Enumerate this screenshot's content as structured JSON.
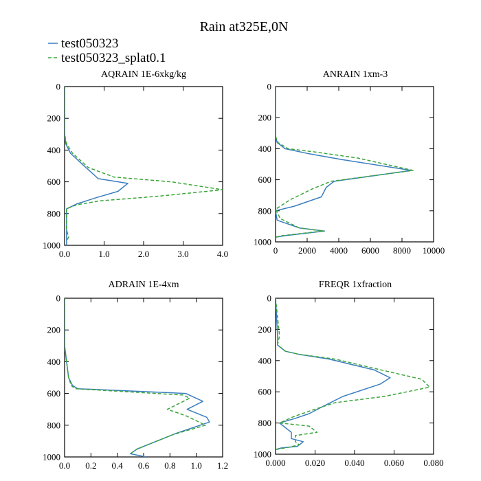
{
  "title": "Rain at325E,0N",
  "legend": [
    {
      "label": "test050323",
      "color": "#3a7ebf",
      "dash": "solid"
    },
    {
      "label": "test050323_splat0.1",
      "color": "#3aa538",
      "dash": "dashed"
    }
  ],
  "chart_data": [
    {
      "type": "line",
      "title": "AQRAIN  1E-6xkg/kg",
      "xlim": [
        0,
        4
      ],
      "xticks": [
        0,
        1,
        2,
        3,
        4
      ],
      "xtick_labels": [
        "0.0",
        "1.0",
        "2.0",
        "3.0",
        "4.0"
      ],
      "ylim": [
        0,
        1000
      ],
      "yticks": [
        0,
        200,
        400,
        600,
        800,
        1000
      ],
      "ytick_labels": [
        "0",
        "200",
        "400",
        "600",
        "800",
        "1000"
      ],
      "y_inverted": true,
      "series": [
        {
          "name": "test050323",
          "x": [
            0,
            0,
            0.03,
            0.15,
            0.45,
            0.72,
            0.85,
            1.1,
            1.6,
            1.35,
            0.8,
            0.3,
            0.05,
            0.05,
            0.05,
            0.05
          ],
          "y": [
            0,
            300,
            360,
            420,
            490,
            550,
            580,
            590,
            610,
            660,
            700,
            740,
            770,
            820,
            900,
            1000
          ]
        },
        {
          "name": "test050323_splat0.1",
          "x": [
            0,
            0,
            0.05,
            0.2,
            0.6,
            1.25,
            2.7,
            4.0,
            2.4,
            0.9,
            0.3,
            0.05,
            0.05,
            0.05,
            0.1,
            0.05
          ],
          "y": [
            0,
            300,
            360,
            420,
            510,
            570,
            600,
            650,
            690,
            720,
            745,
            770,
            820,
            900,
            950,
            970
          ]
        }
      ]
    },
    {
      "type": "line",
      "title": "ANRAIN  1xm-3",
      "xlim": [
        0,
        10000
      ],
      "xticks": [
        0,
        2000,
        4000,
        6000,
        8000,
        10000
      ],
      "xtick_labels": [
        "0",
        "2000",
        "4000",
        "6000",
        "8000",
        "10000"
      ],
      "ylim": [
        0,
        1000
      ],
      "yticks": [
        0,
        200,
        400,
        600,
        800,
        1000
      ],
      "ytick_labels": [
        "0",
        "200",
        "400",
        "600",
        "800",
        "1000"
      ],
      "y_inverted": true,
      "series": [
        {
          "name": "test050323",
          "x": [
            0,
            0,
            100,
            600,
            2000,
            4200,
            8600,
            3700,
            3200,
            2900,
            1200,
            0,
            100,
            1500,
            3100,
            600,
            0
          ],
          "y": [
            0,
            320,
            360,
            400,
            430,
            470,
            540,
            610,
            650,
            710,
            770,
            800,
            860,
            910,
            930,
            960,
            970
          ]
        },
        {
          "name": "test050323_splat0.1",
          "x": [
            0,
            0,
            150,
            800,
            2400,
            5200,
            8700,
            3500,
            2300,
            900,
            0,
            300,
            1500,
            3000,
            400,
            0
          ],
          "y": [
            0,
            320,
            360,
            400,
            420,
            460,
            540,
            610,
            660,
            730,
            790,
            850,
            910,
            930,
            960,
            970
          ]
        }
      ]
    },
    {
      "type": "line",
      "title": "ADRAIN  1E-4xm",
      "xlim": [
        0,
        1.2
      ],
      "xticks": [
        0,
        0.2,
        0.4,
        0.6,
        0.8,
        1.0,
        1.2
      ],
      "xtick_labels": [
        "0.0",
        "0.2",
        "0.4",
        "0.6",
        "0.8",
        "1.0",
        "1.2"
      ],
      "ylim": [
        0,
        1000
      ],
      "yticks": [
        0,
        200,
        400,
        600,
        800,
        1000
      ],
      "ytick_labels": [
        "0",
        "200",
        "400",
        "600",
        "800",
        "1000"
      ],
      "y_inverted": true,
      "series": [
        {
          "name": "test050323",
          "x": [
            0,
            0,
            0.03,
            0.06,
            0.1,
            0.92,
            1.05,
            0.93,
            1.08,
            1.1,
            0.85,
            0.55,
            0.5,
            0.62
          ],
          "y": [
            0,
            300,
            500,
            550,
            570,
            600,
            650,
            700,
            750,
            780,
            850,
            950,
            980,
            1000
          ]
        },
        {
          "name": "test050323_splat0.1",
          "x": [
            0,
            0,
            0.03,
            0.05,
            0.08,
            0.9,
            0.95,
            0.78,
            0.92,
            1.07,
            0.82,
            0.55,
            0.5
          ],
          "y": [
            0,
            300,
            500,
            550,
            570,
            610,
            630,
            700,
            740,
            800,
            860,
            950,
            980
          ]
        }
      ]
    },
    {
      "type": "line",
      "title": "FREQR  1xfraction",
      "xlim": [
        0,
        0.08
      ],
      "xticks": [
        0,
        0.02,
        0.04,
        0.06,
        0.08
      ],
      "xtick_labels": [
        "0.000",
        "0.020",
        "0.040",
        "0.060",
        "0.080"
      ],
      "ylim": [
        0,
        1000
      ],
      "yticks": [
        0,
        200,
        400,
        600,
        800,
        1000
      ],
      "ytick_labels": [
        "0",
        "200",
        "400",
        "600",
        "800",
        "1000"
      ],
      "y_inverted": true,
      "series": [
        {
          "name": "test050323",
          "x": [
            0,
            0.001,
            0.001,
            0.005,
            0.012,
            0.027,
            0.05,
            0.058,
            0.053,
            0.034,
            0.023,
            0.017,
            0.01,
            0.002,
            0.005,
            0.008,
            0.008,
            0.014,
            0.013,
            0.011,
            0.003,
            0
          ],
          "y": [
            0,
            240,
            300,
            340,
            360,
            390,
            460,
            510,
            550,
            630,
            700,
            740,
            770,
            800,
            830,
            860,
            900,
            920,
            930,
            950,
            960,
            970
          ]
        },
        {
          "name": "test050323_splat0.1",
          "x": [
            0,
            0.002,
            0.001,
            0.005,
            0.012,
            0.03,
            0.05,
            0.074,
            0.078,
            0.055,
            0.03,
            0.018,
            0.009,
            0.002,
            0.017,
            0.021,
            0.01,
            0.01,
            0.012,
            0.005,
            0
          ],
          "y": [
            0,
            240,
            300,
            340,
            360,
            390,
            450,
            520,
            570,
            630,
            670,
            720,
            760,
            800,
            820,
            860,
            880,
            920,
            940,
            960,
            970
          ]
        }
      ]
    }
  ]
}
